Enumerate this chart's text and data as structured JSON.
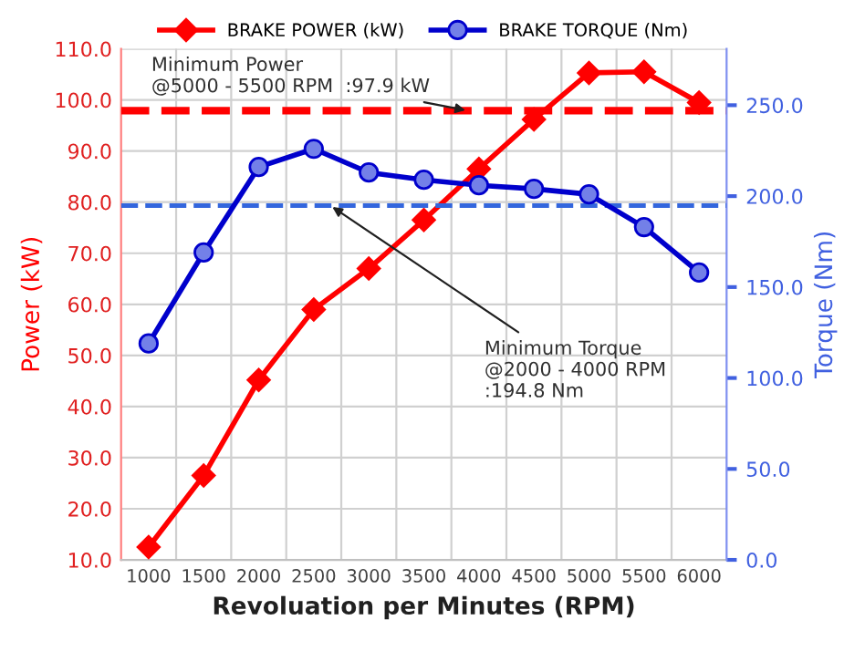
{
  "chart_data": {
    "type": "line",
    "categories": [
      "1000",
      "1500",
      "2000",
      "2500",
      "3000",
      "3500",
      "4000",
      "4500",
      "5000",
      "5500",
      "6000"
    ],
    "xlabel": "Revoluation per Minutes (RPM)",
    "ylabel": "Power (kW)",
    "y2label": "Torque (Nm)",
    "series": [
      {
        "name": "BRAKE POWER (kW)",
        "color": "#ff0000",
        "marker": "diamond",
        "values": [
          12.5,
          26.5,
          45.2,
          59.0,
          67.0,
          76.5,
          86.5,
          96.2,
          105.3,
          105.5,
          99.5
        ]
      },
      {
        "name": "BRAKE TORQUE (Nm)",
        "color": "#0000cc",
        "marker": "circle",
        "axis": "y2",
        "values": [
          119,
          169,
          216,
          226,
          213,
          209,
          206,
          204,
          201,
          183,
          158
        ]
      }
    ],
    "ylim": [
      10,
      110
    ],
    "yticks": [
      {
        "value": 10,
        "label": "10.0"
      },
      {
        "value": 20,
        "label": "20.0"
      },
      {
        "value": 30,
        "label": "30.0"
      },
      {
        "value": 40,
        "label": "40.0"
      },
      {
        "value": 50,
        "label": "50.0"
      },
      {
        "value": 60,
        "label": "60.0"
      },
      {
        "value": 70,
        "label": "70.0"
      },
      {
        "value": 80,
        "label": "80.0"
      },
      {
        "value": 90,
        "label": "90.0"
      },
      {
        "value": 100,
        "label": "100.0"
      },
      {
        "value": 110,
        "label": "110.0"
      }
    ],
    "y2lim": [
      0,
      281
    ],
    "y2ticks": [
      {
        "value": 0,
        "label": "0.0"
      },
      {
        "value": 50,
        "label": "50.0"
      },
      {
        "value": 100,
        "label": "100.0"
      },
      {
        "value": 150,
        "label": "150.0"
      },
      {
        "value": 200,
        "label": "200.0"
      },
      {
        "value": 250,
        "label": "250.0"
      }
    ],
    "ref_lines": [
      {
        "axis": "y",
        "value": 97.9,
        "label": "Minimum Power\n@5000 - 5500 RPM  :97.9 kW",
        "color": "#ff0000",
        "line_style": "dashed"
      },
      {
        "axis": "y2",
        "value": 194.8,
        "label": "Minimum Torque\n@2000 - 4000 RPM\n:194.8 Nm",
        "color": "#3366dd",
        "line_style": "dashed"
      }
    ],
    "grid": true,
    "legend": "top"
  }
}
